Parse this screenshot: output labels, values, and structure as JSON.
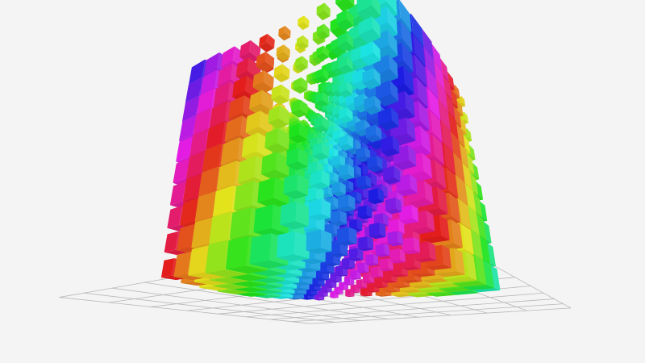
{
  "scene": {
    "background_color": "#f4f4f4",
    "grid_color": "#b8b8b8",
    "cubes_per_axis": 10,
    "color_scheme": "hue gradient"
  }
}
